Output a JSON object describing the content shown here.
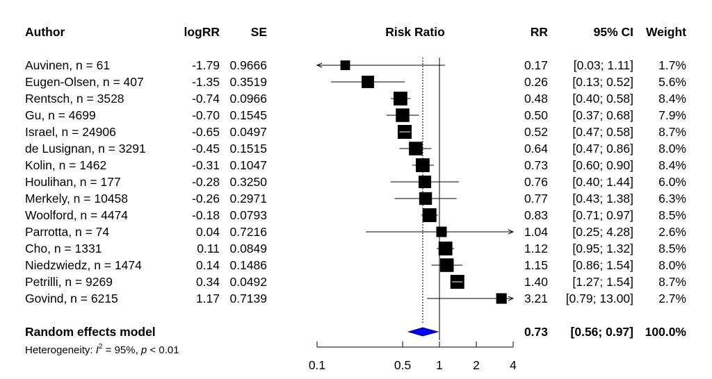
{
  "chart_data": {
    "type": "forest",
    "columns": {
      "author": "Author",
      "logrr": "logRR",
      "se": "SE",
      "plot": "Risk Ratio",
      "rr": "RR",
      "ci": "95% CI",
      "weight": "Weight"
    },
    "x_axis": {
      "scale": "log",
      "range": [
        0.1,
        4
      ],
      "ticks": [
        0.1,
        0.5,
        1,
        2,
        4
      ],
      "tick_labels": [
        "0.1",
        "0.5",
        "1",
        "2",
        "4"
      ],
      "reference_line": 1,
      "summary_line": 0.73
    },
    "studies": [
      {
        "author": "Auvinen, n = 61",
        "logrr": "-1.79",
        "se": "0.9666",
        "rr": 0.17,
        "lower": 0.03,
        "upper": 1.11,
        "rr_text": "0.17",
        "ci_text": "[0.03;  1.11]",
        "weight_text": "1.7%",
        "weight": 1.7
      },
      {
        "author": "Eugen-Olsen, n = 407",
        "logrr": "-1.35",
        "se": "0.3519",
        "rr": 0.26,
        "lower": 0.13,
        "upper": 0.52,
        "rr_text": "0.26",
        "ci_text": "[0.13;  0.52]",
        "weight_text": "5.6%",
        "weight": 5.6
      },
      {
        "author": "Rentsch, n = 3528",
        "logrr": "-0.74",
        "se": "0.0966",
        "rr": 0.48,
        "lower": 0.4,
        "upper": 0.58,
        "rr_text": "0.48",
        "ci_text": "[0.40;  0.58]",
        "weight_text": "8.4%",
        "weight": 8.4
      },
      {
        "author": "Gu, n = 4699",
        "logrr": "-0.70",
        "se": "0.1545",
        "rr": 0.5,
        "lower": 0.37,
        "upper": 0.68,
        "rr_text": "0.50",
        "ci_text": "[0.37;  0.68]",
        "weight_text": "7.9%",
        "weight": 7.9
      },
      {
        "author": "Israel, n = 24906",
        "logrr": "-0.65",
        "se": "0.0497",
        "rr": 0.52,
        "lower": 0.47,
        "upper": 0.58,
        "rr_text": "0.52",
        "ci_text": "[0.47;  0.58]",
        "weight_text": "8.7%",
        "weight": 8.7
      },
      {
        "author": "de Lusignan, n = 3291",
        "logrr": "-0.45",
        "se": "0.1515",
        "rr": 0.64,
        "lower": 0.47,
        "upper": 0.86,
        "rr_text": "0.64",
        "ci_text": "[0.47;  0.86]",
        "weight_text": "8.0%",
        "weight": 8.0
      },
      {
        "author": "Kolin, n = 1462",
        "logrr": "-0.31",
        "se": "0.1047",
        "rr": 0.73,
        "lower": 0.6,
        "upper": 0.9,
        "rr_text": "0.73",
        "ci_text": "[0.60;  0.90]",
        "weight_text": "8.4%",
        "weight": 8.4
      },
      {
        "author": "Houlihan, n = 177",
        "logrr": "-0.28",
        "se": "0.3250",
        "rr": 0.76,
        "lower": 0.4,
        "upper": 1.44,
        "rr_text": "0.76",
        "ci_text": "[0.40;  1.44]",
        "weight_text": "6.0%",
        "weight": 6.0
      },
      {
        "author": "Merkely, n = 10458",
        "logrr": "-0.26",
        "se": "0.2971",
        "rr": 0.77,
        "lower": 0.43,
        "upper": 1.38,
        "rr_text": "0.77",
        "ci_text": "[0.43;  1.38]",
        "weight_text": "6.3%",
        "weight": 6.3
      },
      {
        "author": "Woolford, n = 4474",
        "logrr": "-0.18",
        "se": "0.0793",
        "rr": 0.83,
        "lower": 0.71,
        "upper": 0.97,
        "rr_text": "0.83",
        "ci_text": "[0.71;  0.97]",
        "weight_text": "8.5%",
        "weight": 8.5
      },
      {
        "author": "Parrotta, n = 74",
        "logrr": "0.04",
        "se": "0.7216",
        "rr": 1.04,
        "lower": 0.25,
        "upper": 4.28,
        "rr_text": "1.04",
        "ci_text": "[0.25;  4.28]",
        "weight_text": "2.6%",
        "weight": 2.6
      },
      {
        "author": "Cho, n = 1331",
        "logrr": "0.11",
        "se": "0.0849",
        "rr": 1.12,
        "lower": 0.95,
        "upper": 1.32,
        "rr_text": "1.12",
        "ci_text": "[0.95;  1.32]",
        "weight_text": "8.5%",
        "weight": 8.5
      },
      {
        "author": "Niedzwiedz, n = 1474",
        "logrr": "0.14",
        "se": "0.1486",
        "rr": 1.15,
        "lower": 0.86,
        "upper": 1.54,
        "rr_text": "1.15",
        "ci_text": "[0.86;  1.54]",
        "weight_text": "8.0%",
        "weight": 8.0
      },
      {
        "author": "Petrilli, n = 9269",
        "logrr": "0.34",
        "se": "0.0492",
        "rr": 1.4,
        "lower": 1.27,
        "upper": 1.54,
        "rr_text": "1.40",
        "ci_text": "[1.27;  1.54]",
        "weight_text": "8.7%",
        "weight": 8.7
      },
      {
        "author": "Govind, n = 6215",
        "logrr": "1.17",
        "se": "0.7139",
        "rr": 3.21,
        "lower": 0.79,
        "upper": 13.0,
        "rr_text": "3.21",
        "ci_text": "[0.79; 13.00]",
        "weight_text": "2.7%",
        "weight": 2.7
      }
    ],
    "summary": {
      "label": "Random effects model",
      "rr": 0.73,
      "lower": 0.56,
      "upper": 0.97,
      "rr_text": "0.73",
      "ci_text": "[0.56;  0.97]",
      "weight_text": "100.0%",
      "heterogeneity_prefix": "Heterogeneity: ",
      "heterogeneity_i2_symbol": "I",
      "heterogeneity_i2_exp": "2",
      "heterogeneity_i2_value": " = 95%, ",
      "heterogeneity_p_symbol": "p",
      "heterogeneity_p_value": " < 0.01"
    },
    "colors": {
      "square": "#000000",
      "diamond_fill": "#0000ff",
      "diamond_stroke": "#00008b",
      "ci_inside_square": "#ffffff"
    }
  }
}
